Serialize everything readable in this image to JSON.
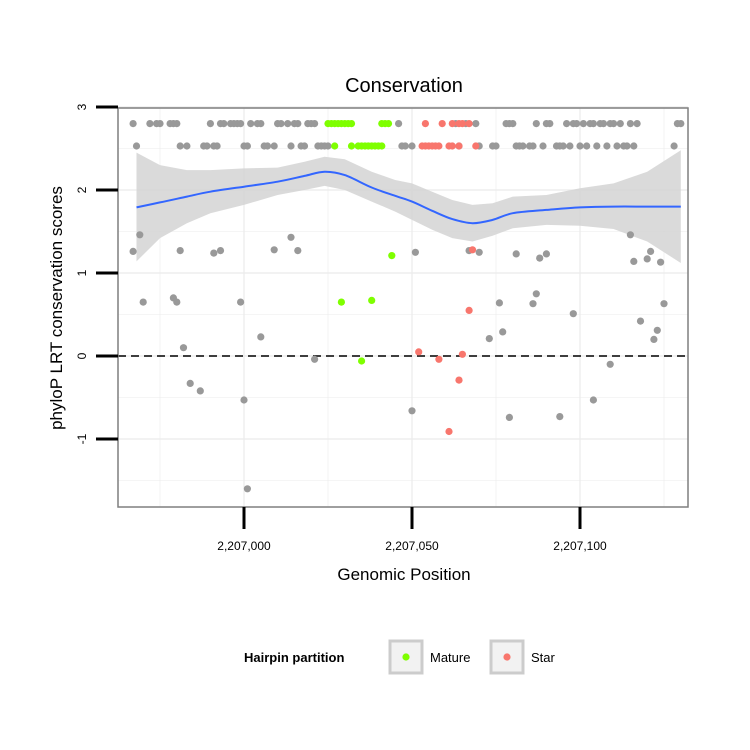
{
  "chart_data": {
    "type": "scatter",
    "title": "Conservation",
    "xlabel": "Genomic Position",
    "ylabel": "phyloP LRT conservation scores",
    "xlim": [
      2206960,
      2207134
    ],
    "ylim": [
      -1.8,
      3.0
    ],
    "x_ticks": [
      {
        "value": 2207000,
        "label": "2,207,000"
      },
      {
        "value": 2207050,
        "label": "2,207,050"
      },
      {
        "value": 2207100,
        "label": "2,207,100"
      }
    ],
    "y_ticks": [
      {
        "value": -1,
        "label": "-1"
      },
      {
        "value": 0,
        "label": "0"
      },
      {
        "value": 1,
        "label": "1"
      },
      {
        "value": 2,
        "label": "2"
      },
      {
        "value": 3,
        "label": "3"
      }
    ],
    "reference_line": {
      "y": 0,
      "style": "dashed"
    },
    "grid": true,
    "panel_background": "#ffffff",
    "grid_color": "#ebebeb",
    "legend": {
      "title": "Hairpin partition",
      "position": "bottom",
      "entries": [
        {
          "label": "Mature",
          "color": "#7fff00"
        },
        {
          "label": "Star",
          "color": "#f8766d"
        }
      ]
    },
    "colors": {
      "other": "#999999",
      "Mature": "#7fff00",
      "Star": "#f8766d",
      "smooth": "#3366ff",
      "band": "#d3d3d3"
    },
    "series": [
      {
        "category": "other",
        "points": [
          [
            2206967,
            2.8
          ],
          [
            2206968,
            2.53
          ],
          [
            2206972,
            2.8
          ],
          [
            2206974,
            2.8
          ],
          [
            2206975,
            2.8
          ],
          [
            2206978,
            2.8
          ],
          [
            2206979,
            2.8
          ],
          [
            2206980,
            2.8
          ],
          [
            2206981,
            2.53
          ],
          [
            2206983,
            2.53
          ],
          [
            2206988,
            2.53
          ],
          [
            2206989,
            2.53
          ],
          [
            2206990,
            2.8
          ],
          [
            2206991,
            2.53
          ],
          [
            2206992,
            2.53
          ],
          [
            2206993,
            2.8
          ],
          [
            2206994,
            2.8
          ],
          [
            2206996,
            2.8
          ],
          [
            2206997,
            2.8
          ],
          [
            2206998,
            2.8
          ],
          [
            2206999,
            2.8
          ],
          [
            2207000,
            2.53
          ],
          [
            2207001,
            2.53
          ],
          [
            2207002,
            2.8
          ],
          [
            2207004,
            2.8
          ],
          [
            2207005,
            2.8
          ],
          [
            2207006,
            2.53
          ],
          [
            2207007,
            2.53
          ],
          [
            2207009,
            2.53
          ],
          [
            2207010,
            2.8
          ],
          [
            2207011,
            2.8
          ],
          [
            2207013,
            2.8
          ],
          [
            2207014,
            2.53
          ],
          [
            2207015,
            2.8
          ],
          [
            2207016,
            2.8
          ],
          [
            2207017,
            2.53
          ],
          [
            2207018,
            2.53
          ],
          [
            2207019,
            2.8
          ],
          [
            2207020,
            2.8
          ],
          [
            2207021,
            2.8
          ],
          [
            2207022,
            2.53
          ],
          [
            2207023,
            2.53
          ],
          [
            2207024,
            2.53
          ],
          [
            2207025,
            2.53
          ],
          [
            2207046,
            2.8
          ],
          [
            2207047,
            2.53
          ],
          [
            2207048,
            2.53
          ],
          [
            2207050,
            2.53
          ],
          [
            2207063,
            2.8
          ],
          [
            2207064,
            2.53
          ],
          [
            2207066,
            2.8
          ],
          [
            2207069,
            2.8
          ],
          [
            2207070,
            2.53
          ],
          [
            2207074,
            2.53
          ],
          [
            2207075,
            2.53
          ],
          [
            2207078,
            2.8
          ],
          [
            2207079,
            2.8
          ],
          [
            2207080,
            2.8
          ],
          [
            2207081,
            2.53
          ],
          [
            2207082,
            2.53
          ],
          [
            2207083,
            2.53
          ],
          [
            2207085,
            2.53
          ],
          [
            2207086,
            2.53
          ],
          [
            2207087,
            2.8
          ],
          [
            2207089,
            2.53
          ],
          [
            2207090,
            2.8
          ],
          [
            2207091,
            2.8
          ],
          [
            2207093,
            2.53
          ],
          [
            2207094,
            2.53
          ],
          [
            2207095,
            2.53
          ],
          [
            2207096,
            2.8
          ],
          [
            2207097,
            2.53
          ],
          [
            2207098,
            2.8
          ],
          [
            2207099,
            2.8
          ],
          [
            2207100,
            2.53
          ],
          [
            2207101,
            2.8
          ],
          [
            2207102,
            2.53
          ],
          [
            2207103,
            2.8
          ],
          [
            2207104,
            2.8
          ],
          [
            2207105,
            2.53
          ],
          [
            2207106,
            2.8
          ],
          [
            2207107,
            2.8
          ],
          [
            2207108,
            2.53
          ],
          [
            2207109,
            2.8
          ],
          [
            2207110,
            2.8
          ],
          [
            2207111,
            2.53
          ],
          [
            2207112,
            2.8
          ],
          [
            2207113,
            2.53
          ],
          [
            2207114,
            2.53
          ],
          [
            2207115,
            2.8
          ],
          [
            2207116,
            2.53
          ],
          [
            2207117,
            2.8
          ],
          [
            2207128,
            2.53
          ],
          [
            2207129,
            2.8
          ],
          [
            2207130,
            2.8
          ],
          [
            2206967,
            1.26
          ],
          [
            2206969,
            1.46
          ],
          [
            2206970,
            0.65
          ],
          [
            2206979,
            0.7
          ],
          [
            2206980,
            0.65
          ],
          [
            2206981,
            1.27
          ],
          [
            2206982,
            0.1
          ],
          [
            2206984,
            -0.33
          ],
          [
            2206987,
            -0.42
          ],
          [
            2206991,
            1.24
          ],
          [
            2206993,
            1.27
          ],
          [
            2206999,
            0.65
          ],
          [
            2207000,
            -0.53
          ],
          [
            2207001,
            -1.6
          ],
          [
            2207005,
            0.23
          ],
          [
            2207009,
            1.28
          ],
          [
            2207014,
            1.43
          ],
          [
            2207016,
            1.27
          ],
          [
            2207021,
            -0.04
          ],
          [
            2207050,
            -0.66
          ],
          [
            2207051,
            1.25
          ],
          [
            2207067,
            1.27
          ],
          [
            2207070,
            1.25
          ],
          [
            2207073,
            0.21
          ],
          [
            2207076,
            0.64
          ],
          [
            2207077,
            0.29
          ],
          [
            2207079,
            -0.74
          ],
          [
            2207081,
            1.23
          ],
          [
            2207086,
            0.63
          ],
          [
            2207087,
            0.75
          ],
          [
            2207088,
            1.18
          ],
          [
            2207090,
            1.23
          ],
          [
            2207094,
            -0.73
          ],
          [
            2207098,
            0.51
          ],
          [
            2207104,
            -0.53
          ],
          [
            2207109,
            -0.1
          ],
          [
            2207115,
            1.46
          ],
          [
            2207116,
            1.14
          ],
          [
            2207118,
            0.42
          ],
          [
            2207120,
            1.17
          ],
          [
            2207121,
            1.26
          ],
          [
            2207122,
            0.2
          ],
          [
            2207123,
            0.31
          ],
          [
            2207124,
            1.13
          ],
          [
            2207125,
            0.63
          ]
        ]
      },
      {
        "category": "Mature",
        "points": [
          [
            2207025,
            2.8
          ],
          [
            2207026,
            2.8
          ],
          [
            2207027,
            2.8
          ],
          [
            2207028,
            2.8
          ],
          [
            2207029,
            2.8
          ],
          [
            2207030,
            2.8
          ],
          [
            2207031,
            2.8
          ],
          [
            2207032,
            2.8
          ],
          [
            2207027,
            2.53
          ],
          [
            2207032,
            2.53
          ],
          [
            2207034,
            2.53
          ],
          [
            2207035,
            2.53
          ],
          [
            2207036,
            2.53
          ],
          [
            2207037,
            2.53
          ],
          [
            2207038,
            2.53
          ],
          [
            2207039,
            2.53
          ],
          [
            2207040,
            2.53
          ],
          [
            2207041,
            2.53
          ],
          [
            2207041,
            2.8
          ],
          [
            2207042,
            2.8
          ],
          [
            2207043,
            2.8
          ],
          [
            2207029,
            0.65
          ],
          [
            2207035,
            -0.06
          ],
          [
            2207038,
            0.67
          ],
          [
            2207044,
            1.21
          ]
        ]
      },
      {
        "category": "Star",
        "points": [
          [
            2207054,
            2.8
          ],
          [
            2207059,
            2.8
          ],
          [
            2207062,
            2.8
          ],
          [
            2207064,
            2.8
          ],
          [
            2207065,
            2.8
          ],
          [
            2207067,
            2.8
          ],
          [
            2207053,
            2.53
          ],
          [
            2207054,
            2.53
          ],
          [
            2207055,
            2.53
          ],
          [
            2207056,
            2.53
          ],
          [
            2207057,
            2.53
          ],
          [
            2207058,
            2.53
          ],
          [
            2207061,
            2.53
          ],
          [
            2207062,
            2.53
          ],
          [
            2207064,
            2.53
          ],
          [
            2207069,
            2.53
          ],
          [
            2207052,
            0.05
          ],
          [
            2207058,
            -0.04
          ],
          [
            2207061,
            -0.91
          ],
          [
            2207064,
            -0.29
          ],
          [
            2207065,
            0.02
          ],
          [
            2207067,
            0.55
          ],
          [
            2207068,
            1.28
          ]
        ]
      }
    ],
    "smooth": {
      "x": [
        2206968,
        2206975,
        2206983,
        2206990,
        2207000,
        2207010,
        2207018,
        2207024,
        2207030,
        2207038,
        2207045,
        2207050,
        2207056,
        2207062,
        2207068,
        2207074,
        2207080,
        2207090,
        2207100,
        2207110,
        2207120,
        2207130
      ],
      "y": [
        1.79,
        1.85,
        1.92,
        1.98,
        2.04,
        2.1,
        2.17,
        2.22,
        2.18,
        2.03,
        1.93,
        1.86,
        1.75,
        1.65,
        1.6,
        1.64,
        1.72,
        1.76,
        1.79,
        1.8,
        1.8,
        1.8
      ],
      "lower": [
        1.14,
        1.42,
        1.6,
        1.72,
        1.82,
        1.94,
        2.0,
        2.05,
        2.0,
        1.86,
        1.74,
        1.64,
        1.52,
        1.42,
        1.38,
        1.45,
        1.54,
        1.58,
        1.57,
        1.53,
        1.38,
        1.12
      ],
      "upper": [
        2.45,
        2.3,
        2.24,
        2.24,
        2.26,
        2.27,
        2.34,
        2.4,
        2.37,
        2.22,
        2.12,
        2.08,
        1.98,
        1.88,
        1.82,
        1.84,
        1.92,
        1.94,
        2.02,
        2.08,
        2.22,
        2.48
      ]
    }
  }
}
